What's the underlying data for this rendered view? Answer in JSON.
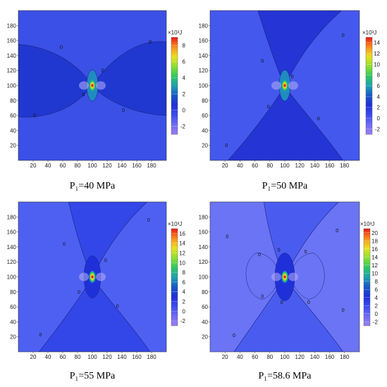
{
  "chart_data": [
    {
      "type": "heatmap",
      "caption": "P₁=40 MPa",
      "xlim": [
        0,
        200
      ],
      "ylim": [
        0,
        200
      ],
      "x_ticks": [
        20,
        40,
        60,
        80,
        100,
        120,
        140,
        160,
        180
      ],
      "y_ticks": [
        20,
        40,
        60,
        80,
        100,
        120,
        140,
        160,
        180
      ],
      "colorbar_title": "×10³J",
      "colorbar_ticks": [
        -2,
        0,
        2,
        4,
        6,
        8
      ],
      "colorbar_range": [
        -3,
        9
      ],
      "contour_labels": [
        "0",
        "0",
        "0",
        "0",
        "0",
        "0"
      ],
      "background_color": "#2038d0",
      "outer_color": "#3a50e6"
    },
    {
      "type": "heatmap",
      "caption": "P₁=50 MPa",
      "xlim": [
        0,
        200
      ],
      "ylim": [
        0,
        200
      ],
      "x_ticks": [
        20,
        40,
        60,
        80,
        100,
        120,
        140,
        160,
        180
      ],
      "y_ticks": [
        20,
        40,
        60,
        80,
        100,
        120,
        140,
        160,
        180
      ],
      "colorbar_title": "×10³J",
      "colorbar_ticks": [
        -2,
        0,
        2,
        4,
        6,
        8,
        10,
        12,
        14
      ],
      "colorbar_range": [
        -3,
        15
      ],
      "contour_labels": [
        "0",
        "0",
        "0",
        "0",
        "0",
        "0"
      ],
      "background_color": "#2a3fe0",
      "outer_color": "#4458ee"
    },
    {
      "type": "heatmap",
      "caption": "P₁=55 MPa",
      "xlim": [
        0,
        200
      ],
      "ylim": [
        0,
        200
      ],
      "x_ticks": [
        20,
        40,
        60,
        80,
        100,
        120,
        140,
        160,
        180
      ],
      "y_ticks": [
        20,
        40,
        60,
        80,
        100,
        120,
        140,
        160,
        180
      ],
      "colorbar_title": "×10³J",
      "colorbar_ticks": [
        -2,
        0,
        2,
        4,
        6,
        8,
        10,
        12,
        14,
        16
      ],
      "colorbar_range": [
        -3,
        17
      ],
      "contour_labels": [
        "0",
        "0",
        "0",
        "0",
        "0",
        "0"
      ],
      "background_color": "#3a4ff0",
      "outer_color": "#4e60f2"
    },
    {
      "type": "heatmap",
      "caption": "P₁=58.6 MPa",
      "xlim": [
        0,
        200
      ],
      "ylim": [
        0,
        200
      ],
      "x_ticks": [
        20,
        40,
        60,
        80,
        100,
        120,
        140,
        160,
        180
      ],
      "y_ticks": [
        20,
        40,
        60,
        80,
        100,
        120,
        140,
        160,
        180
      ],
      "colorbar_title": "×10³J",
      "colorbar_ticks": [
        -2,
        0,
        2,
        4,
        6,
        8,
        10,
        12,
        14,
        16,
        18,
        20
      ],
      "colorbar_range": [
        -3,
        21
      ],
      "contour_labels": [
        "0",
        "0",
        "0",
        "0",
        "0",
        "0",
        "0",
        "0",
        "0",
        "0"
      ],
      "background_color": "#4254f0",
      "outer_color": "#6a74f4"
    }
  ],
  "colormap": [
    "#9a7cf4",
    "#6f6cf2",
    "#3b4cf0",
    "#1f30d8",
    "#1858c8",
    "#1fa0b0",
    "#2fc860",
    "#8ee030",
    "#e8e020",
    "#f8a020",
    "#f86018",
    "#e81818"
  ]
}
